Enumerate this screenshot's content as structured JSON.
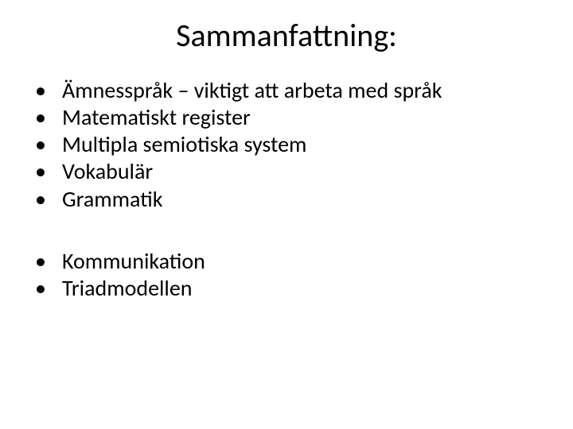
{
  "slide": {
    "title": "Sammanfattning:",
    "title_fontsize": 40,
    "body_fontsize": 28,
    "text_color": "#000000",
    "background_color": "#ffffff",
    "bullet_marker": "•",
    "groups": [
      {
        "items": [
          "Ämnesspråk – viktigt att arbeta med språk",
          "Matematiskt register",
          "Multipla semiotiska system",
          "Vokabulär",
          "Grammatik"
        ]
      },
      {
        "items": [
          "Kommunikation",
          "Triadmodellen"
        ]
      }
    ]
  }
}
